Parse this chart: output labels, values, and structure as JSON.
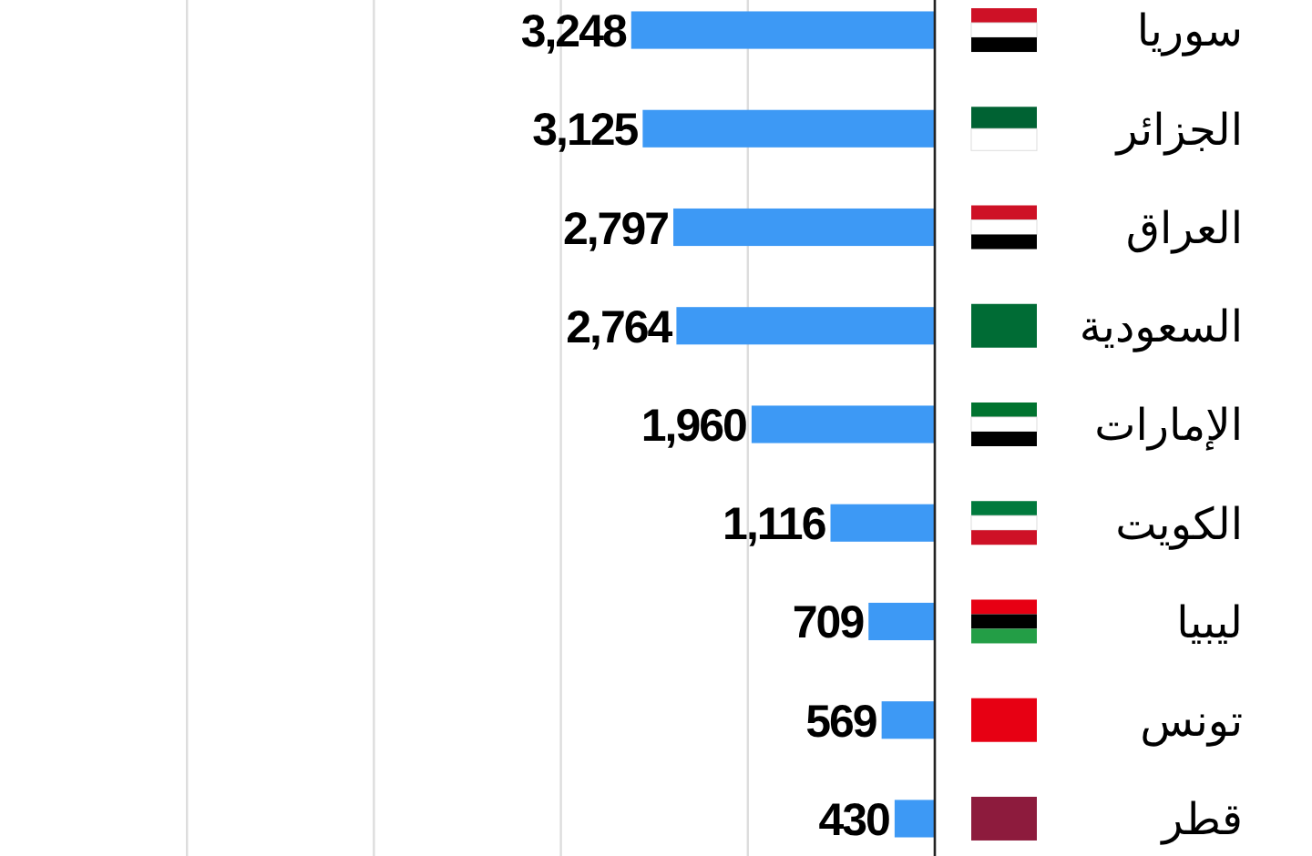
{
  "chart_data": {
    "type": "bar",
    "orientation": "horizontal",
    "categories": [
      "سوريا",
      "الجزائر",
      "العراق",
      "السعودية",
      "الإمارات",
      "الكويت",
      "ليبيا",
      "تونس",
      "قطر"
    ],
    "values": [
      3248,
      3125,
      2797,
      2764,
      1960,
      1116,
      709,
      569,
      430
    ],
    "color": "#3d99f5",
    "value_labels": [
      "3,248",
      "3,125",
      "2,797",
      "2,764",
      "1,960",
      "1,116",
      "709",
      "569",
      "430"
    ],
    "xlim": [
      10000,
      0
    ],
    "xticks": [
      {
        "value": 8000,
        "label": null
      },
      {
        "value": 6000,
        "label": null
      },
      {
        "value": 4000,
        "label": null
      },
      {
        "value": 2000,
        "label": null
      }
    ],
    "grid": "x",
    "tick_labels": "y"
  }
}
